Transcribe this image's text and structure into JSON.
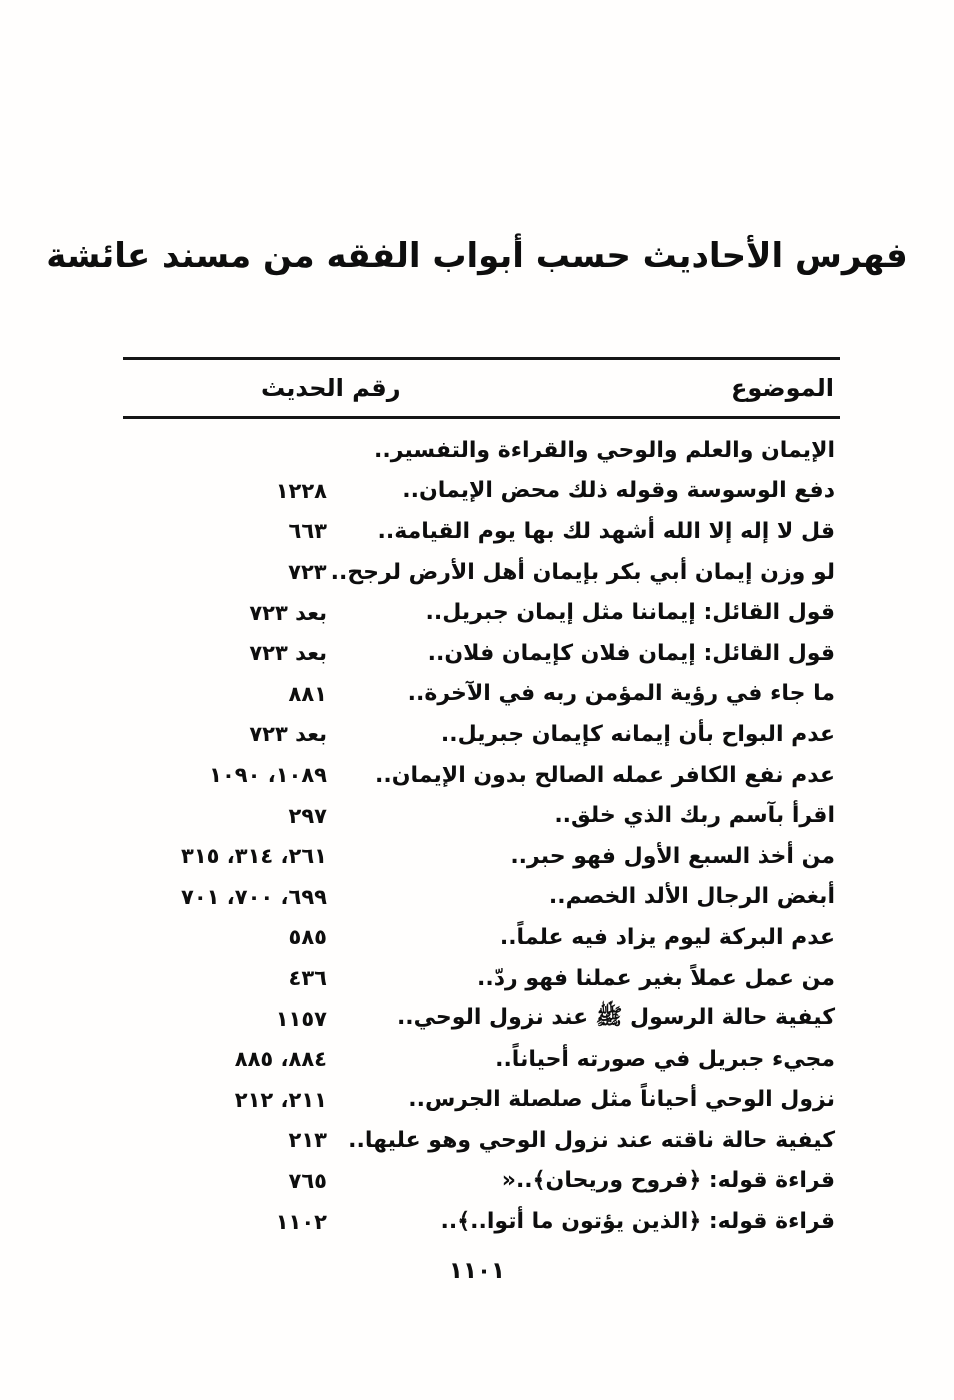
{
  "document": {
    "title": "فهرس الأحاديث حسب أبواب الفقه من مسند عائشة",
    "page_number": "١١٠١"
  },
  "colors": {
    "ink": "#161616",
    "paper": "#fffefd"
  },
  "table": {
    "headers": {
      "topic": "الموضوع",
      "number": "رقم الحديث"
    },
    "rows": [
      {
        "topic": "الإيمان والعلم والوحي والقراءة والتفسير..",
        "number": ""
      },
      {
        "topic": "دفع الوسوسة وقوله ذلك محض الإيمان..",
        "number": "١٢٢٨"
      },
      {
        "topic": "قل لا إله إلا الله أشهد لك بها يوم القيامة..",
        "number": "٦٦٣"
      },
      {
        "topic": "لو وزن إيمان أبي بكر بإيمان أهل الأرض لرجح..",
        "number": "٧٢٣"
      },
      {
        "topic": "قول القائل: إيماننا مثل إيمان جبريل..",
        "number": "بعد ٧٢٣"
      },
      {
        "topic": "قول القائل: إيمان فلان كإيمان فلان..",
        "number": "بعد ٧٢٣"
      },
      {
        "topic": "ما جاء في رؤية المؤمن ربه في الآخرة..",
        "number": "٨٨١"
      },
      {
        "topic": "عدم البواح بأن إيمانه كإيمان جبريل..",
        "number": "بعد ٧٢٣"
      },
      {
        "topic": "عدم نفع الكافر عمله الصالح بدون الإيمان..",
        "number": "١٠٨٩، ١٠٩٠"
      },
      {
        "topic": "اقرأ بآسم ربك الذي خلق..",
        "number": "٢٩٧"
      },
      {
        "topic": "من أخذ السبع الأول فهو حبر..",
        "number": "٢٦١، ٣١٤، ٣١٥"
      },
      {
        "topic": "أبغض الرجال الألد الخصم..",
        "number": "٦٩٩، ٧٠٠، ٧٠١"
      },
      {
        "topic": "عدم البركة ليوم يزاد فيه علماً..",
        "number": "٥٨٥"
      },
      {
        "topic": "من عمل عملاً بغير عملنا فهو ردّ..",
        "number": "٤٣٦"
      },
      {
        "topic": "كيفية حالة الرسول ﷺ عند نزول الوحي..",
        "number": "١١٥٧"
      },
      {
        "topic": "مجيء جبريل في صورته أحياناً..",
        "number": "٨٨٤، ٨٨٥"
      },
      {
        "topic": "نزول الوحي أحياناً مثل صلصلة الجرس..",
        "number": "٢١١، ٢١٢"
      },
      {
        "topic": "كيفية حالة ناقته عند نزول الوحي وهو عليها..",
        "number": "٢١٣"
      },
      {
        "topic": "قراءة قوله: ﴿فروح وريحان﴾..«",
        "number": "٧٦٥"
      },
      {
        "topic": "قراءة قوله: ﴿الذين يؤتون ما أتوا..﴾..",
        "number": "١١٠٢"
      }
    ]
  }
}
